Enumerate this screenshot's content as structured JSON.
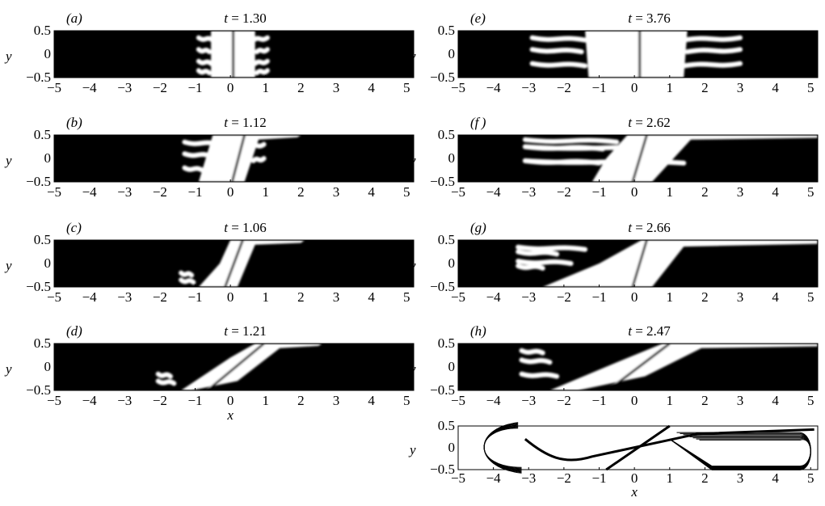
{
  "panels": [
    {
      "id": "a",
      "label": "(a)",
      "time_var": "t",
      "time_value": "1.30"
    },
    {
      "id": "b",
      "label": "(b)",
      "time_var": "t",
      "time_value": "1.12"
    },
    {
      "id": "c",
      "label": "(c)",
      "time_var": "t",
      "time_value": "1.06"
    },
    {
      "id": "d",
      "label": "(d)",
      "time_var": "t",
      "time_value": "1.21"
    },
    {
      "id": "e",
      "label": "(e)",
      "time_var": "t",
      "time_value": "3.76"
    },
    {
      "id": "f",
      "label": "(f )",
      "time_var": "t",
      "time_value": "2.62"
    },
    {
      "id": "g",
      "label": "(g)",
      "time_var": "t",
      "time_value": "2.66"
    },
    {
      "id": "h",
      "label": "(h)",
      "time_var": "t",
      "time_value": "2.47"
    }
  ],
  "axes": {
    "x_label": "x",
    "y_label": "y",
    "x_ticks": [
      "−5",
      "−4",
      "−3",
      "−2",
      "−1",
      "0",
      "1",
      "2",
      "3",
      "4",
      "5"
    ],
    "y_ticks": [
      "0.5",
      "0",
      "−0.5"
    ]
  },
  "colors": {
    "fluid_dark": "#000000",
    "fluid_light": "#ffffff"
  }
}
